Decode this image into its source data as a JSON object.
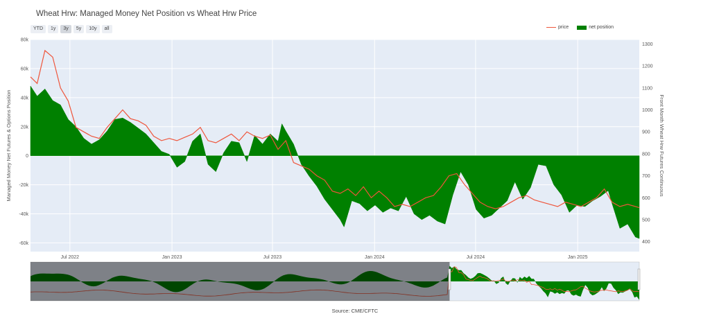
{
  "title": "Wheat Hrw: Managed Money Net Position vs Wheat Hrw Price",
  "range_buttons": [
    "YTD",
    "1y",
    "3y",
    "5y",
    "10y",
    "all"
  ],
  "range_selected": "3y",
  "legend": {
    "price": "price",
    "net": "net position"
  },
  "source": "Source: CME/CFTC",
  "colors": {
    "price": "#ef553b",
    "net": "#008000",
    "plot_bg": "#e5ecf6"
  },
  "chart_data": {
    "type": "area",
    "title": "Wheat Hrw: Managed Money Net Position vs Wheat Hrw Price",
    "ylabel": "Managed Money Net Futures & Options Position",
    "y2label": "Front Month Wheat Hrw Futures Continuous",
    "ylim": [
      -66000,
      80000
    ],
    "y2lim": [
      355,
      1320
    ],
    "y_ticks": [
      "80k",
      "60k",
      "40k",
      "20k",
      "0",
      "-20k",
      "-40k",
      "-60k"
    ],
    "y2_ticks": [
      "1300",
      "1200",
      "1100",
      "1000",
      "900",
      "800",
      "700",
      "600",
      "500",
      "400"
    ],
    "x_ticks": [
      "Jul 2022",
      "Jan 2023",
      "Jul 2023",
      "Jan 2024",
      "Jul 2024",
      "Jan 2025"
    ],
    "xlim": [
      "2022-04-21",
      "2025-04-22"
    ],
    "grid": true,
    "legend_position": "top-right",
    "series": [
      {
        "name": "net position",
        "axis": "left",
        "points": [
          [
            "2022-04-21",
            48000
          ],
          [
            "2022-05-03",
            41000
          ],
          [
            "2022-05-17",
            46000
          ],
          [
            "2022-05-31",
            38000
          ],
          [
            "2022-06-14",
            35000
          ],
          [
            "2022-06-28",
            25000
          ],
          [
            "2022-07-12",
            20000
          ],
          [
            "2022-07-26",
            12000
          ],
          [
            "2022-08-09",
            8000
          ],
          [
            "2022-08-23",
            11000
          ],
          [
            "2022-09-06",
            17000
          ],
          [
            "2022-09-20",
            25000
          ],
          [
            "2022-10-04",
            26000
          ],
          [
            "2022-10-18",
            23000
          ],
          [
            "2022-11-01",
            19000
          ],
          [
            "2022-11-15",
            15000
          ],
          [
            "2022-11-29",
            9000
          ],
          [
            "2022-12-13",
            3000
          ],
          [
            "2022-12-27",
            1000
          ],
          [
            "2023-01-10",
            -8000
          ],
          [
            "2023-01-24",
            -4000
          ],
          [
            "2023-02-07",
            10000
          ],
          [
            "2023-02-21",
            15000
          ],
          [
            "2023-03-07",
            -6000
          ],
          [
            "2023-03-21",
            -11000
          ],
          [
            "2023-04-04",
            2000
          ],
          [
            "2023-04-18",
            10000
          ],
          [
            "2023-05-02",
            9000
          ],
          [
            "2023-05-16",
            -4000
          ],
          [
            "2023-05-30",
            14000
          ],
          [
            "2023-06-13",
            8000
          ],
          [
            "2023-06-27",
            15000
          ],
          [
            "2023-07-11",
            10000
          ],
          [
            "2023-07-18",
            22000
          ],
          [
            "2023-07-25",
            17000
          ],
          [
            "2023-08-08",
            8000
          ],
          [
            "2023-08-22",
            -6000
          ],
          [
            "2023-09-05",
            -14000
          ],
          [
            "2023-09-19",
            -21000
          ],
          [
            "2023-10-03",
            -30000
          ],
          [
            "2023-10-17",
            -37000
          ],
          [
            "2023-10-31",
            -44000
          ],
          [
            "2023-11-07",
            -49000
          ],
          [
            "2023-11-21",
            -31000
          ],
          [
            "2023-12-05",
            -33000
          ],
          [
            "2023-12-19",
            -38000
          ],
          [
            "2024-01-02",
            -34000
          ],
          [
            "2024-01-16",
            -39000
          ],
          [
            "2024-01-30",
            -36000
          ],
          [
            "2024-02-13",
            -38000
          ],
          [
            "2024-02-27",
            -28000
          ],
          [
            "2024-03-12",
            -40000
          ],
          [
            "2024-03-26",
            -44000
          ],
          [
            "2024-04-09",
            -41000
          ],
          [
            "2024-04-23",
            -45000
          ],
          [
            "2024-05-07",
            -47000
          ],
          [
            "2024-05-21",
            -27000
          ],
          [
            "2024-06-04",
            -11000
          ],
          [
            "2024-06-18",
            -20000
          ],
          [
            "2024-07-02",
            -37000
          ],
          [
            "2024-07-16",
            -43000
          ],
          [
            "2024-07-30",
            -41000
          ],
          [
            "2024-08-13",
            -36000
          ],
          [
            "2024-08-27",
            -31000
          ],
          [
            "2024-09-10",
            -18000
          ],
          [
            "2024-09-24",
            -30000
          ],
          [
            "2024-10-08",
            -22000
          ],
          [
            "2024-10-22",
            -6000
          ],
          [
            "2024-11-05",
            -7000
          ],
          [
            "2024-11-19",
            -20000
          ],
          [
            "2024-12-03",
            -27000
          ],
          [
            "2024-12-17",
            -39000
          ],
          [
            "2024-12-31",
            -34000
          ],
          [
            "2025-01-14",
            -35000
          ],
          [
            "2025-01-28",
            -31000
          ],
          [
            "2025-02-11",
            -28000
          ],
          [
            "2025-02-25",
            -24000
          ],
          [
            "2025-03-04",
            -33000
          ],
          [
            "2025-03-18",
            -50000
          ],
          [
            "2025-04-01",
            -47000
          ],
          [
            "2025-04-15",
            -56000
          ],
          [
            "2025-04-22",
            -57000
          ]
        ]
      },
      {
        "name": "price",
        "axis": "right",
        "points": [
          [
            "2022-04-21",
            1150
          ],
          [
            "2022-05-03",
            1120
          ],
          [
            "2022-05-17",
            1270
          ],
          [
            "2022-05-31",
            1240
          ],
          [
            "2022-06-14",
            1100
          ],
          [
            "2022-06-28",
            1040
          ],
          [
            "2022-07-12",
            920
          ],
          [
            "2022-07-26",
            900
          ],
          [
            "2022-08-09",
            880
          ],
          [
            "2022-08-23",
            870
          ],
          [
            "2022-09-06",
            920
          ],
          [
            "2022-09-20",
            960
          ],
          [
            "2022-10-04",
            1000
          ],
          [
            "2022-10-18",
            960
          ],
          [
            "2022-11-01",
            950
          ],
          [
            "2022-11-15",
            930
          ],
          [
            "2022-11-29",
            880
          ],
          [
            "2022-12-13",
            860
          ],
          [
            "2022-12-27",
            870
          ],
          [
            "2023-01-10",
            860
          ],
          [
            "2023-01-24",
            875
          ],
          [
            "2023-02-07",
            890
          ],
          [
            "2023-02-21",
            920
          ],
          [
            "2023-03-07",
            860
          ],
          [
            "2023-03-21",
            850
          ],
          [
            "2023-04-04",
            870
          ],
          [
            "2023-04-18",
            890
          ],
          [
            "2023-05-02",
            860
          ],
          [
            "2023-05-16",
            900
          ],
          [
            "2023-05-30",
            880
          ],
          [
            "2023-06-13",
            870
          ],
          [
            "2023-06-27",
            885
          ],
          [
            "2023-07-11",
            820
          ],
          [
            "2023-07-25",
            860
          ],
          [
            "2023-08-08",
            760
          ],
          [
            "2023-08-22",
            745
          ],
          [
            "2023-09-05",
            730
          ],
          [
            "2023-09-19",
            700
          ],
          [
            "2023-10-03",
            680
          ],
          [
            "2023-10-17",
            630
          ],
          [
            "2023-10-31",
            620
          ],
          [
            "2023-11-14",
            640
          ],
          [
            "2023-11-28",
            610
          ],
          [
            "2023-12-12",
            650
          ],
          [
            "2023-12-26",
            600
          ],
          [
            "2024-01-09",
            630
          ],
          [
            "2024-01-23",
            600
          ],
          [
            "2024-02-06",
            560
          ],
          [
            "2024-02-20",
            570
          ],
          [
            "2024-03-05",
            560
          ],
          [
            "2024-03-19",
            580
          ],
          [
            "2024-04-02",
            600
          ],
          [
            "2024-04-16",
            610
          ],
          [
            "2024-04-30",
            650
          ],
          [
            "2024-05-14",
            700
          ],
          [
            "2024-05-28",
            710
          ],
          [
            "2024-06-11",
            660
          ],
          [
            "2024-06-25",
            620
          ],
          [
            "2024-07-09",
            580
          ],
          [
            "2024-07-23",
            560
          ],
          [
            "2024-08-06",
            550
          ],
          [
            "2024-08-20",
            560
          ],
          [
            "2024-09-03",
            580
          ],
          [
            "2024-09-17",
            600
          ],
          [
            "2024-10-01",
            610
          ],
          [
            "2024-10-15",
            590
          ],
          [
            "2024-10-29",
            580
          ],
          [
            "2024-11-12",
            570
          ],
          [
            "2024-11-26",
            560
          ],
          [
            "2024-12-10",
            580
          ],
          [
            "2024-12-24",
            570
          ],
          [
            "2025-01-07",
            560
          ],
          [
            "2025-01-21",
            580
          ],
          [
            "2025-02-04",
            600
          ],
          [
            "2025-02-18",
            640
          ],
          [
            "2025-03-04",
            580
          ],
          [
            "2025-03-18",
            560
          ],
          [
            "2025-04-01",
            570
          ],
          [
            "2025-04-22",
            555
          ]
        ]
      }
    ]
  }
}
